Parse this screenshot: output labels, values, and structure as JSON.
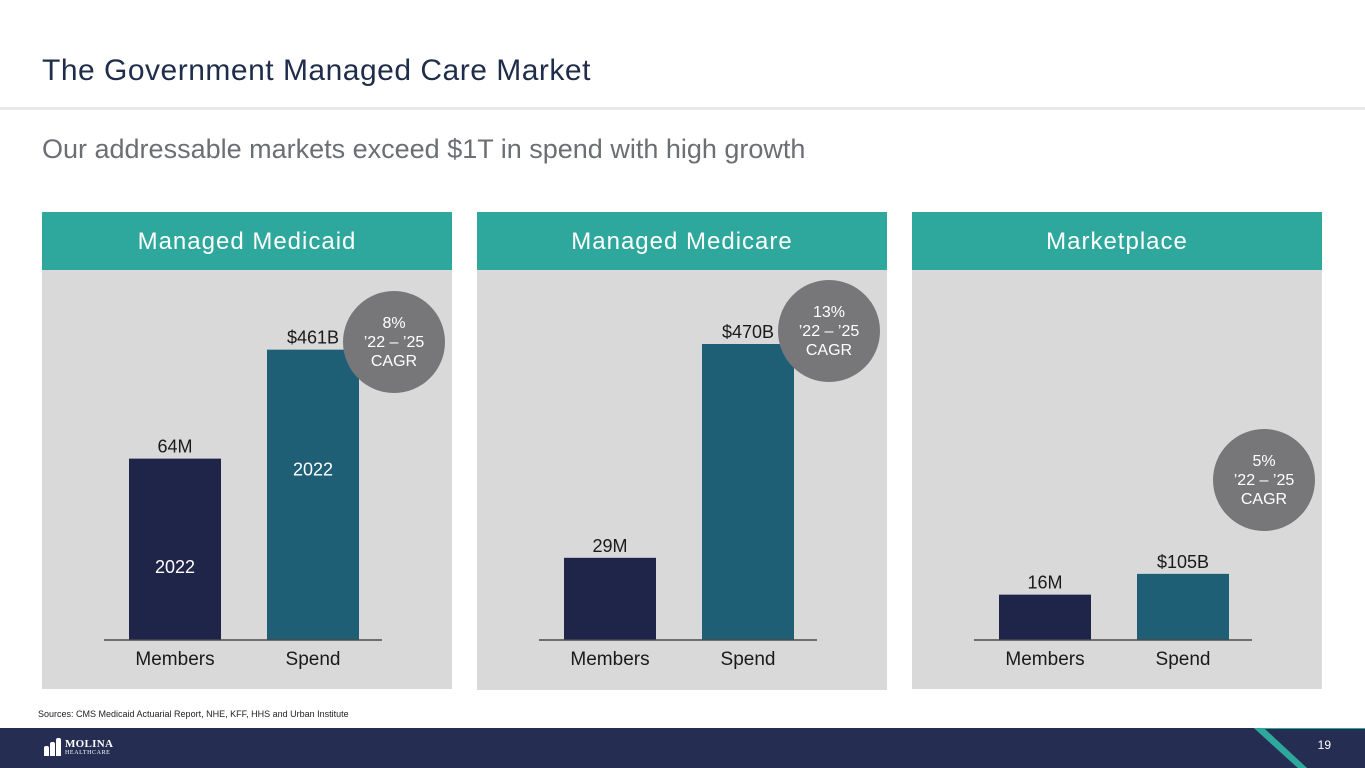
{
  "slide": {
    "title": "The Government Managed Care Market",
    "subtitle": "Our addressable markets exceed $1T in spend with high growth",
    "sources": "Sources: CMS Medicaid Actuarial Report, NHE, KFF, HHS and Urban Institute",
    "page_number": "19"
  },
  "logo": {
    "name": "MOLINA",
    "sub": "HEALTHCARE",
    "mark": "®"
  },
  "colors": {
    "header_teal": "#2ea89c",
    "members_bar": "#1e2549",
    "spend_bar": "#1e5f75",
    "badge": "#77777a",
    "panel_bg": "#d9d9d9",
    "footer_navy": "#252e52"
  },
  "chart_data": [
    {
      "type": "bar",
      "title": "Managed Medicaid",
      "categories": [
        "Members",
        "Spend"
      ],
      "values": [
        64,
        461
      ],
      "units": [
        "M",
        "B"
      ],
      "data_labels": [
        "64M",
        "$461B"
      ],
      "inner_labels": [
        "2022",
        "2022"
      ],
      "badge": {
        "rate": "8%",
        "period": "’22 – ’25",
        "label": "CAGR"
      }
    },
    {
      "type": "bar",
      "title": "Managed Medicare",
      "categories": [
        "Members",
        "Spend"
      ],
      "values": [
        29,
        470
      ],
      "units": [
        "M",
        "B"
      ],
      "data_labels": [
        "29M",
        "$470B"
      ],
      "inner_labels": [
        "",
        ""
      ],
      "badge": {
        "rate": "13%",
        "period": "’22 – ’25",
        "label": "CAGR"
      }
    },
    {
      "type": "bar",
      "title": "Marketplace",
      "categories": [
        "Members",
        "Spend"
      ],
      "values": [
        16,
        105
      ],
      "units": [
        "M",
        "B"
      ],
      "data_labels": [
        "16M",
        "$105B"
      ],
      "inner_labels": [
        "",
        ""
      ],
      "badge": {
        "rate": "5%",
        "period": "’22 – ’25",
        "label": "CAGR"
      }
    }
  ]
}
